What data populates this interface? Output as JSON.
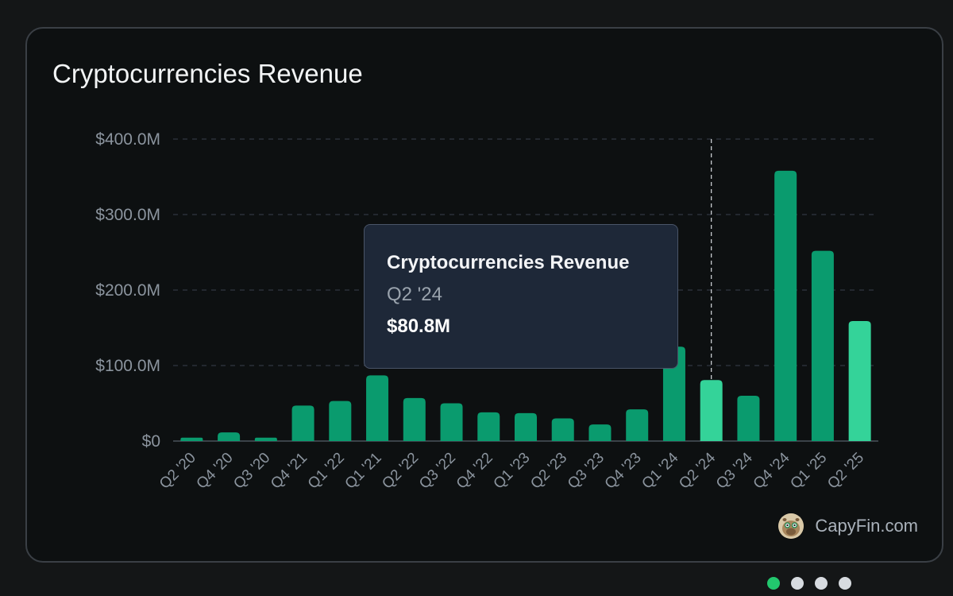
{
  "title": "Cryptocurrencies Revenue",
  "chart_data": {
    "type": "bar",
    "categories": [
      "Q2 '20",
      "Q4 '20",
      "Q3 '20",
      "Q4 '21",
      "Q1 '22",
      "Q1 '21",
      "Q2 '22",
      "Q3 '22",
      "Q4 '22",
      "Q1 '23",
      "Q2 '23",
      "Q3 '23",
      "Q4 '23",
      "Q1 '24",
      "Q2 '24",
      "Q3 '24",
      "Q4 '24",
      "Q1 '25",
      "Q2 '25"
    ],
    "values": [
      4.5,
      11.5,
      4.5,
      47,
      53,
      87,
      57,
      50,
      38,
      37,
      30,
      22,
      42,
      125,
      80.8,
      60,
      358,
      252,
      159
    ],
    "ylim": [
      0,
      400
    ],
    "y_ticks": [
      "$0",
      "$100.0M",
      "$200.0M",
      "$300.0M",
      "$400.0M"
    ],
    "y_tick_values": [
      0,
      100,
      200,
      300,
      400
    ],
    "grid": true,
    "highlighted_category": "Q2 '24",
    "colors": {
      "bar": "#0a9b6e",
      "bar_highlight": "#34d399",
      "bar_last": "#34d399"
    }
  },
  "tooltip": {
    "title": "Cryptocurrencies Revenue",
    "period": "Q2 '24",
    "value": "$80.8M"
  },
  "brand": {
    "name": "CapyFin.com",
    "logo_icon": "capybara-logo-icon"
  },
  "pagination": {
    "total": 4,
    "active": 0,
    "active_color": "#22c86e"
  }
}
